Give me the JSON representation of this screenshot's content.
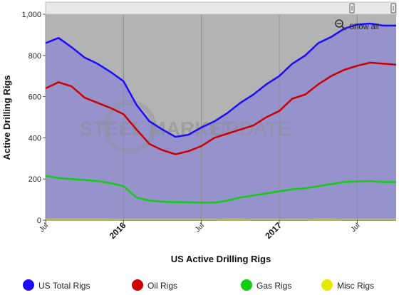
{
  "watermark": {
    "bold": "STEEL MARKET",
    "light": " UPDATE"
  },
  "show_all_label": "Show all",
  "chart_data": {
    "type": "area",
    "xlabel": "US Active Drilling Rigs",
    "ylabel": "Active Drilling Rigs",
    "ylim": [
      0,
      1000
    ],
    "x_range": [
      "2015-07",
      "2017-10"
    ],
    "y_ticks": [
      0,
      200,
      400,
      600,
      800,
      1000
    ],
    "y_tick_labels": [
      "0",
      "200",
      "400",
      "600",
      "800",
      "1,000"
    ],
    "x_ticks": [
      {
        "date": "2015-07-01",
        "label": "Jul",
        "bold": false
      },
      {
        "date": "2016-01-01",
        "label": "2016",
        "bold": true
      },
      {
        "date": "2016-07-01",
        "label": "Jul",
        "bold": false
      },
      {
        "date": "2017-01-01",
        "label": "2017",
        "bold": true
      },
      {
        "date": "2017-07-01",
        "label": "Jul",
        "bold": false
      }
    ],
    "grid": "vertical",
    "legend": "bottom",
    "x": [
      "2015-07",
      "2015-08",
      "2015-09",
      "2015-10",
      "2015-11",
      "2015-12",
      "2016-01",
      "2016-02",
      "2016-03",
      "2016-04",
      "2016-05",
      "2016-06",
      "2016-07",
      "2016-08",
      "2016-09",
      "2016-10",
      "2016-11",
      "2016-12",
      "2017-01",
      "2017-02",
      "2017-03",
      "2017-04",
      "2017-05",
      "2017-06",
      "2017-07",
      "2017-08",
      "2017-09",
      "2017-10"
    ],
    "series": [
      {
        "name": "US Total Rigs",
        "color": "#1a0dff",
        "values": [
          860,
          885,
          840,
          790,
          760,
          720,
          675,
          560,
          480,
          440,
          405,
          415,
          450,
          480,
          520,
          570,
          610,
          660,
          700,
          760,
          800,
          860,
          890,
          930,
          950,
          955,
          945,
          945
        ]
      },
      {
        "name": "Oil Rigs",
        "color": "#cc0000",
        "values": [
          640,
          670,
          650,
          595,
          570,
          545,
          515,
          440,
          370,
          340,
          320,
          335,
          360,
          400,
          420,
          440,
          460,
          500,
          530,
          590,
          610,
          660,
          700,
          730,
          750,
          765,
          760,
          755
        ]
      },
      {
        "name": "Gas Rigs",
        "color": "#11cc11",
        "values": [
          215,
          205,
          200,
          195,
          190,
          180,
          165,
          110,
          95,
          90,
          88,
          87,
          85,
          85,
          95,
          110,
          120,
          130,
          140,
          150,
          155,
          165,
          175,
          185,
          188,
          190,
          185,
          185
        ]
      },
      {
        "name": "Misc Rigs",
        "color": "#e8e800",
        "values": [
          3,
          3,
          3,
          3,
          3,
          3,
          2,
          2,
          2,
          2,
          2,
          2,
          2,
          2,
          3,
          3,
          2,
          2,
          2,
          2,
          2,
          3,
          3,
          2,
          2,
          2,
          2,
          2
        ]
      }
    ]
  }
}
